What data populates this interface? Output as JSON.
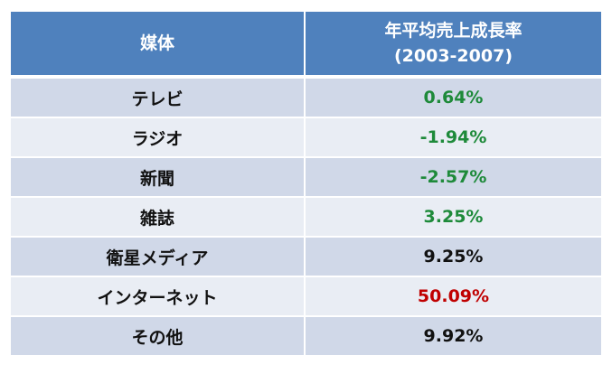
{
  "chart_data": {
    "type": "table",
    "columns": [
      "媒体",
      "年平均売上成長率",
      "(2003-2007)"
    ],
    "rows": [
      {
        "media": "テレビ",
        "growth": "0.64%",
        "color": "#1e8a3a"
      },
      {
        "media": "ラジオ",
        "growth": "-1.94%",
        "color": "#1e8a3a"
      },
      {
        "media": "新聞",
        "growth": "-2.57%",
        "color": "#1e8a3a"
      },
      {
        "media": "雑誌",
        "growth": "3.25%",
        "color": "#1e8a3a"
      },
      {
        "media": "衛星メディア",
        "growth": "9.25%",
        "color": "#111111"
      },
      {
        "media": "インターネット",
        "growth": "50.09%",
        "color": "#c00000"
      },
      {
        "media": "その他",
        "growth": "9.92%",
        "color": "#111111"
      }
    ]
  },
  "colors": {
    "header_bg": "#4f81bd",
    "row_odd": "#d0d8e8",
    "row_even": "#e9edf4"
  }
}
